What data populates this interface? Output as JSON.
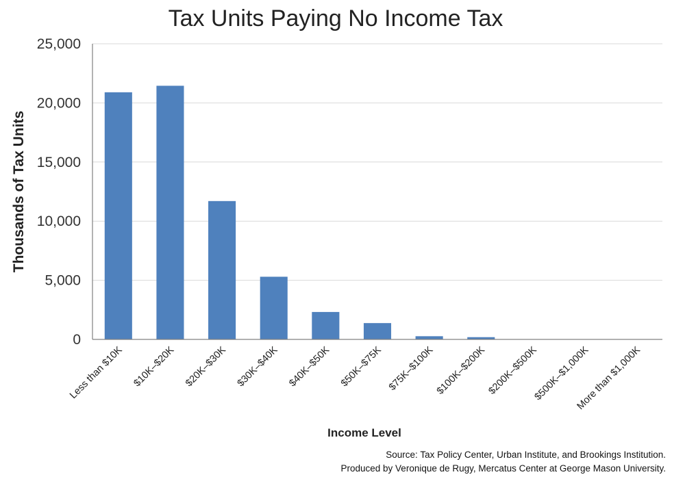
{
  "chart_data": {
    "type": "bar",
    "title": "Tax Units Paying No Income Tax",
    "xlabel": "Income Level",
    "ylabel": "Thousands of Tax Units",
    "categories": [
      "Less than $10K",
      "$10K–$20K",
      "$20K–$30K",
      "$30K–$40K",
      "$40K–$50K",
      "$50K–$75K",
      "$75K–$100K",
      "$100K–$200K",
      "$200K–$500K",
      "$500K–$1,000K",
      "More than $1,000K"
    ],
    "values": [
      20900,
      21450,
      11700,
      5300,
      2320,
      1380,
      270,
      190,
      15,
      5,
      2
    ],
    "ylim": [
      0,
      25000
    ],
    "yticks": [
      0,
      5000,
      10000,
      15000,
      20000,
      25000
    ],
    "ytick_labels": [
      "0",
      "5,000",
      "10,000",
      "15,000",
      "20,000",
      "25,000"
    ],
    "grid": true,
    "bar_color": "#4f81bd"
  },
  "notes": {
    "source": "Source: Tax Policy Center, Urban Institute, and Brookings Institution.",
    "produced_by": "Produced by Veronique de Rugy, Mercatus Center at George Mason University."
  }
}
